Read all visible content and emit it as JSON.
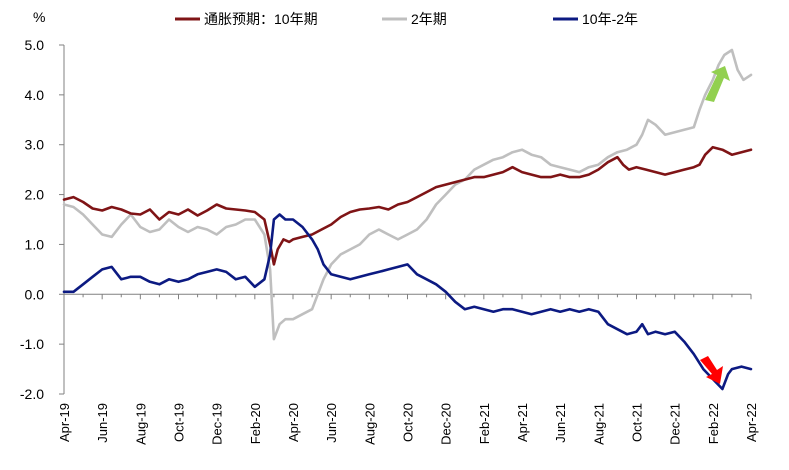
{
  "chart_data": {
    "type": "line",
    "title": "",
    "unit_label": "%",
    "xlabel": "",
    "ylabel": "%",
    "ylim": [
      -2.0,
      5.0
    ],
    "yticks": [
      "5.0",
      "4.0",
      "3.0",
      "2.0",
      "1.0",
      "0.0",
      "-1.0",
      "-2.0"
    ],
    "ytick_values": [
      5.0,
      4.0,
      3.0,
      2.0,
      1.0,
      0.0,
      -1.0,
      -2.0
    ],
    "x_start": "2019-04",
    "x_end": "2022-04",
    "xticks": [
      "Apr-19",
      "Jun-19",
      "Aug-19",
      "Oct-19",
      "Dec-19",
      "Feb-20",
      "Apr-20",
      "Jun-20",
      "Aug-20",
      "Oct-20",
      "Dec-20",
      "Feb-21",
      "Apr-21",
      "Jun-21",
      "Aug-21",
      "Oct-21",
      "Dec-21",
      "Feb-22",
      "Apr-22"
    ],
    "legend_position": "top",
    "series": [
      {
        "name": "通胀预期：10年期",
        "color": "#7f1416",
        "points": [
          [
            0,
            1.9
          ],
          [
            0.5,
            1.95
          ],
          [
            1,
            1.85
          ],
          [
            1.5,
            1.72
          ],
          [
            2,
            1.68
          ],
          [
            2.5,
            1.75
          ],
          [
            3,
            1.7
          ],
          [
            3.5,
            1.62
          ],
          [
            4,
            1.6
          ],
          [
            4.5,
            1.7
          ],
          [
            5,
            1.5
          ],
          [
            5.5,
            1.65
          ],
          [
            6,
            1.6
          ],
          [
            6.5,
            1.7
          ],
          [
            7,
            1.58
          ],
          [
            7.5,
            1.68
          ],
          [
            8,
            1.8
          ],
          [
            8.5,
            1.72
          ],
          [
            9,
            1.7
          ],
          [
            9.5,
            1.68
          ],
          [
            10,
            1.65
          ],
          [
            10.5,
            1.5
          ],
          [
            10.8,
            1.0
          ],
          [
            11,
            0.6
          ],
          [
            11.2,
            0.9
          ],
          [
            11.5,
            1.1
          ],
          [
            11.8,
            1.05
          ],
          [
            12,
            1.1
          ],
          [
            12.5,
            1.15
          ],
          [
            13,
            1.2
          ],
          [
            13.5,
            1.3
          ],
          [
            14,
            1.4
          ],
          [
            14.5,
            1.55
          ],
          [
            15,
            1.65
          ],
          [
            15.5,
            1.7
          ],
          [
            16,
            1.72
          ],
          [
            16.5,
            1.75
          ],
          [
            17,
            1.7
          ],
          [
            17.5,
            1.8
          ],
          [
            18,
            1.85
          ],
          [
            18.5,
            1.95
          ],
          [
            19,
            2.05
          ],
          [
            19.5,
            2.15
          ],
          [
            20,
            2.2
          ],
          [
            20.5,
            2.25
          ],
          [
            21,
            2.3
          ],
          [
            21.5,
            2.35
          ],
          [
            22,
            2.35
          ],
          [
            22.5,
            2.4
          ],
          [
            23,
            2.45
          ],
          [
            23.5,
            2.55
          ],
          [
            24,
            2.45
          ],
          [
            24.5,
            2.4
          ],
          [
            25,
            2.35
          ],
          [
            25.5,
            2.35
          ],
          [
            26,
            2.4
          ],
          [
            26.5,
            2.35
          ],
          [
            27,
            2.35
          ],
          [
            27.5,
            2.4
          ],
          [
            28,
            2.5
          ],
          [
            28.5,
            2.65
          ],
          [
            29,
            2.75
          ],
          [
            29.3,
            2.6
          ],
          [
            29.6,
            2.5
          ],
          [
            30,
            2.55
          ],
          [
            30.5,
            2.5
          ],
          [
            31,
            2.45
          ],
          [
            31.5,
            2.4
          ],
          [
            32,
            2.45
          ],
          [
            32.5,
            2.5
          ],
          [
            33,
            2.55
          ],
          [
            33.3,
            2.6
          ],
          [
            33.6,
            2.8
          ],
          [
            34,
            2.95
          ],
          [
            34.5,
            2.9
          ],
          [
            35,
            2.8
          ],
          [
            35.5,
            2.85
          ],
          [
            36,
            2.9
          ]
        ]
      },
      {
        "name": "2年期",
        "color": "#bfbfbf",
        "points": [
          [
            0,
            1.8
          ],
          [
            0.5,
            1.75
          ],
          [
            1,
            1.6
          ],
          [
            1.5,
            1.4
          ],
          [
            2,
            1.2
          ],
          [
            2.5,
            1.15
          ],
          [
            3,
            1.4
          ],
          [
            3.5,
            1.6
          ],
          [
            4,
            1.35
          ],
          [
            4.5,
            1.25
          ],
          [
            5,
            1.3
          ],
          [
            5.5,
            1.5
          ],
          [
            6,
            1.35
          ],
          [
            6.5,
            1.25
          ],
          [
            7,
            1.35
          ],
          [
            7.5,
            1.3
          ],
          [
            8,
            1.2
          ],
          [
            8.5,
            1.35
          ],
          [
            9,
            1.4
          ],
          [
            9.5,
            1.5
          ],
          [
            10,
            1.5
          ],
          [
            10.5,
            1.2
          ],
          [
            10.8,
            0.5
          ],
          [
            11,
            -0.9
          ],
          [
            11.3,
            -0.6
          ],
          [
            11.6,
            -0.5
          ],
          [
            12,
            -0.5
          ],
          [
            12.5,
            -0.4
          ],
          [
            13,
            -0.3
          ],
          [
            13.3,
            0.0
          ],
          [
            13.6,
            0.3
          ],
          [
            14,
            0.6
          ],
          [
            14.5,
            0.8
          ],
          [
            15,
            0.9
          ],
          [
            15.5,
            1.0
          ],
          [
            16,
            1.2
          ],
          [
            16.5,
            1.3
          ],
          [
            17,
            1.2
          ],
          [
            17.5,
            1.1
          ],
          [
            18,
            1.2
          ],
          [
            18.5,
            1.3
          ],
          [
            19,
            1.5
          ],
          [
            19.5,
            1.8
          ],
          [
            20,
            2.0
          ],
          [
            20.5,
            2.2
          ],
          [
            21,
            2.3
          ],
          [
            21.5,
            2.5
          ],
          [
            22,
            2.6
          ],
          [
            22.5,
            2.7
          ],
          [
            23,
            2.75
          ],
          [
            23.5,
            2.85
          ],
          [
            24,
            2.9
          ],
          [
            24.5,
            2.8
          ],
          [
            25,
            2.75
          ],
          [
            25.5,
            2.6
          ],
          [
            26,
            2.55
          ],
          [
            26.5,
            2.5
          ],
          [
            27,
            2.45
          ],
          [
            27.5,
            2.55
          ],
          [
            28,
            2.6
          ],
          [
            28.5,
            2.75
          ],
          [
            29,
            2.85
          ],
          [
            29.5,
            2.9
          ],
          [
            30,
            3.0
          ],
          [
            30.3,
            3.2
          ],
          [
            30.6,
            3.5
          ],
          [
            31,
            3.4
          ],
          [
            31.5,
            3.2
          ],
          [
            32,
            3.25
          ],
          [
            32.5,
            3.3
          ],
          [
            33,
            3.35
          ],
          [
            33.3,
            3.7
          ],
          [
            33.6,
            4.0
          ],
          [
            34,
            4.3
          ],
          [
            34.3,
            4.6
          ],
          [
            34.6,
            4.8
          ],
          [
            35,
            4.9
          ],
          [
            35.3,
            4.5
          ],
          [
            35.6,
            4.3
          ],
          [
            36,
            4.4
          ]
        ]
      },
      {
        "name": "10年-2年",
        "color": "#0c1a82",
        "points": [
          [
            0,
            0.05
          ],
          [
            0.5,
            0.05
          ],
          [
            1,
            0.2
          ],
          [
            1.5,
            0.35
          ],
          [
            2,
            0.5
          ],
          [
            2.5,
            0.55
          ],
          [
            3,
            0.3
          ],
          [
            3.5,
            0.35
          ],
          [
            4,
            0.35
          ],
          [
            4.5,
            0.25
          ],
          [
            5,
            0.2
          ],
          [
            5.5,
            0.3
          ],
          [
            6,
            0.25
          ],
          [
            6.5,
            0.3
          ],
          [
            7,
            0.4
          ],
          [
            7.5,
            0.45
          ],
          [
            8,
            0.5
          ],
          [
            8.5,
            0.45
          ],
          [
            9,
            0.3
          ],
          [
            9.5,
            0.35
          ],
          [
            10,
            0.15
          ],
          [
            10.5,
            0.3
          ],
          [
            10.8,
            0.8
          ],
          [
            11,
            1.5
          ],
          [
            11.3,
            1.6
          ],
          [
            11.6,
            1.5
          ],
          [
            12,
            1.5
          ],
          [
            12.5,
            1.35
          ],
          [
            13,
            1.1
          ],
          [
            13.3,
            0.9
          ],
          [
            13.6,
            0.6
          ],
          [
            14,
            0.4
          ],
          [
            14.5,
            0.35
          ],
          [
            15,
            0.3
          ],
          [
            15.5,
            0.35
          ],
          [
            16,
            0.4
          ],
          [
            16.5,
            0.45
          ],
          [
            17,
            0.5
          ],
          [
            17.5,
            0.55
          ],
          [
            18,
            0.6
          ],
          [
            18.5,
            0.4
          ],
          [
            19,
            0.3
          ],
          [
            19.5,
            0.2
          ],
          [
            20,
            0.05
          ],
          [
            20.5,
            -0.15
          ],
          [
            21,
            -0.3
          ],
          [
            21.5,
            -0.25
          ],
          [
            22,
            -0.3
          ],
          [
            22.5,
            -0.35
          ],
          [
            23,
            -0.3
          ],
          [
            23.5,
            -0.3
          ],
          [
            24,
            -0.35
          ],
          [
            24.5,
            -0.4
          ],
          [
            25,
            -0.35
          ],
          [
            25.5,
            -0.3
          ],
          [
            26,
            -0.35
          ],
          [
            26.5,
            -0.3
          ],
          [
            27,
            -0.35
          ],
          [
            27.5,
            -0.3
          ],
          [
            28,
            -0.35
          ],
          [
            28.5,
            -0.6
          ],
          [
            29,
            -0.7
          ],
          [
            29.5,
            -0.8
          ],
          [
            30,
            -0.75
          ],
          [
            30.3,
            -0.6
          ],
          [
            30.6,
            -0.8
          ],
          [
            31,
            -0.75
          ],
          [
            31.5,
            -0.8
          ],
          [
            32,
            -0.75
          ],
          [
            32.5,
            -0.95
          ],
          [
            33,
            -1.2
          ],
          [
            33.5,
            -1.5
          ],
          [
            34,
            -1.7
          ],
          [
            34.5,
            -1.9
          ],
          [
            34.8,
            -1.6
          ],
          [
            35,
            -1.5
          ],
          [
            35.5,
            -1.45
          ],
          [
            36,
            -1.5
          ]
        ]
      }
    ],
    "annotations": [
      {
        "type": "arrow",
        "direction": "up",
        "color": "#92d050",
        "near_series": "2年期"
      },
      {
        "type": "arrow",
        "direction": "down",
        "color": "#ff0000",
        "near_series": "10年-2年"
      }
    ]
  }
}
